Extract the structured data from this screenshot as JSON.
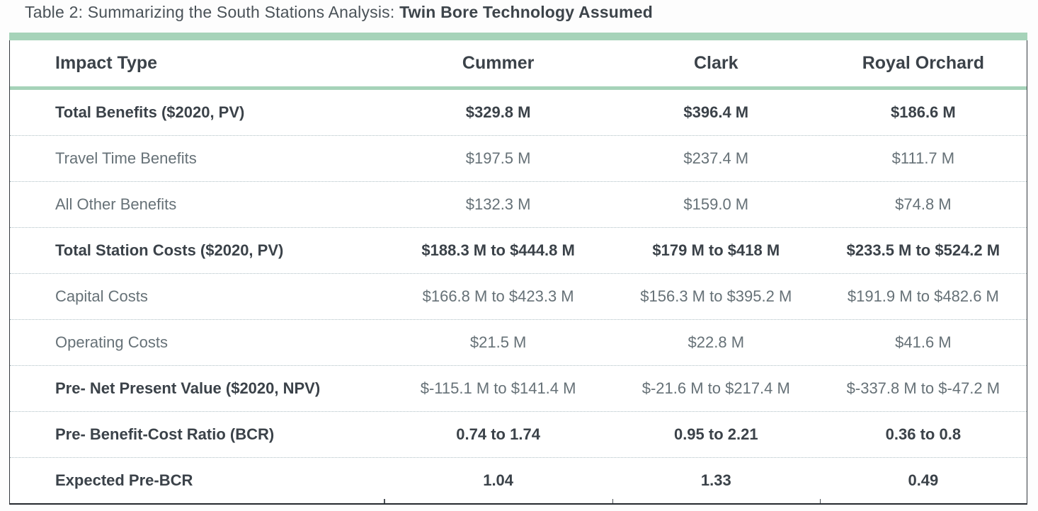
{
  "title": {
    "prefix": "Table 2: Summarizing the South Stations Analysis: ",
    "emphasis": "Twin Bore Technology Assumed"
  },
  "colors": {
    "accent_green": "#a6d3b9",
    "text_dark": "#3b4249",
    "text_gray": "#667177",
    "border_dark": "#33383d",
    "dotted_divider": "#aebfc4"
  },
  "table": {
    "columns": [
      "Impact Type",
      "Cummer",
      "Clark",
      "Royal Orchard"
    ],
    "rows": [
      {
        "label": "Total Benefits ($2020, PV)",
        "values": [
          "$329.8 M",
          "$396.4 M",
          "$186.6 M"
        ]
      },
      {
        "label": "Travel Time Benefits",
        "values": [
          "$197.5 M",
          "$237.4 M",
          "$111.7 M"
        ]
      },
      {
        "label": "All Other Benefits",
        "values": [
          "$132.3 M",
          "$159.0 M",
          "$74.8 M"
        ]
      },
      {
        "label": "Total Station Costs ($2020, PV)",
        "values": [
          "$188.3 M  to  $444.8 M",
          "$179 M  to  $418 M",
          "$233.5 M  to  $524.2 M"
        ]
      },
      {
        "label": "Capital Costs",
        "values": [
          "$166.8 M  to  $423.3 M",
          "$156.3 M  to  $395.2 M",
          "$191.9 M  to  $482.6 M"
        ]
      },
      {
        "label": "Operating Costs",
        "values": [
          "$21.5 M",
          "$22.8 M",
          "$41.6 M"
        ]
      },
      {
        "label": "Pre- Net Present Value ($2020, NPV)",
        "values": [
          "$-115.1 M  to  $141.4 M",
          "$-21.6 M  to  $217.4 M",
          "$-337.8 M  to  $-47.2 M"
        ]
      },
      {
        "label": "Pre- Benefit-Cost Ratio (BCR)",
        "values": [
          "0.74 to 1.74",
          "0.95 to 2.21",
          "0.36 to 0.8"
        ]
      },
      {
        "label": "Expected Pre-BCR",
        "values": [
          "1.04",
          "1.33",
          "0.49"
        ]
      }
    ]
  }
}
